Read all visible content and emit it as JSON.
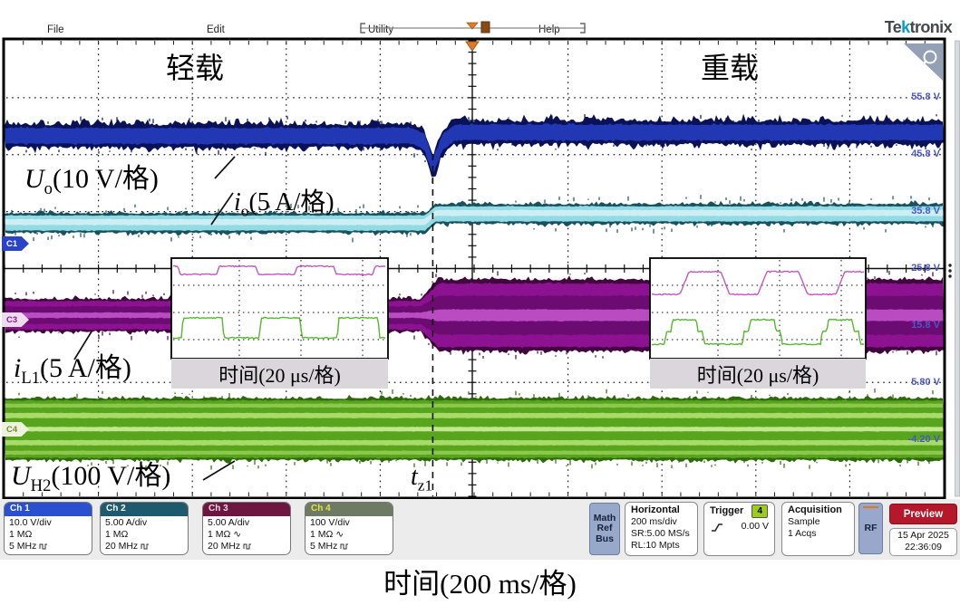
{
  "menu": {
    "items": [
      "File",
      "Edit",
      "Utility",
      "Help"
    ]
  },
  "logo": {
    "pre": "Te",
    "k": "k",
    "post": "tronix"
  },
  "display": {
    "region_light": "轻载",
    "region_heavy": "重载",
    "labels": {
      "uo": {
        "sym": "U",
        "sub": "o",
        "rest": "(10 V/格)"
      },
      "io": {
        "sym": "i",
        "sub": "o",
        "rest": "(5 A/格)"
      },
      "il1": {
        "sym": "i",
        "sub": "L1",
        "rest": "(5 A/格)"
      },
      "uh2": {
        "sym": "U",
        "sub": "H2",
        "rest": "(100 V/格)"
      },
      "tz1": {
        "sym": "t",
        "sub": "z1",
        "rest": ""
      }
    },
    "scale_labels": [
      "55.8 V",
      "45.8 V",
      "35.8 V",
      "25.8 V",
      "15.8 V",
      "5.80 V",
      "-4.20 V"
    ],
    "channel_markers": {
      "c1": "C1",
      "c3": "C3",
      "c4": "C4"
    },
    "inset_caption_left": "时间(20 μs/格)",
    "inset_caption_right": "时间(20 μs/格)"
  },
  "status_bar": {
    "channels": [
      {
        "name": "Ch 1",
        "line1": "10.0 V/div",
        "line2": "1 MΩ",
        "line3": "5 MHz",
        "header_color": "#2a4fd0",
        "text_color": "#ffffff"
      },
      {
        "name": "Ch 2",
        "line1": "5.00 A/div",
        "line2": "1 MΩ",
        "line3": "20 MHz",
        "header_color": "#1d5a6e",
        "text_color": "#ffffff"
      },
      {
        "name": "Ch 3",
        "line1": "5.00 A/div",
        "line2": "1 MΩ ∿",
        "line3": "20 MHz",
        "header_color": "#6e1642",
        "text_color": "#f0d8e0"
      },
      {
        "name": "Ch 4",
        "line1": "100 V/div",
        "line2": "1 MΩ ∿",
        "line3": "5 MHz",
        "header_color": "#6f7a64",
        "text_color": "#e6e23e"
      }
    ],
    "math": "Math",
    "ref": "Ref",
    "bus": "Bus",
    "horizontal": {
      "title": "Horizontal",
      "line1": "200 ms/div",
      "line2": "SR:5.00 MS/s",
      "line3": "RL:10 Mpts"
    },
    "trigger": {
      "title": "Trigger",
      "source_badge": "4",
      "level": "0.00 V"
    },
    "acquisition": {
      "title": "Acquisition",
      "line1": "Sample",
      "line2": "1 Acqs"
    },
    "rf": "RF",
    "preview": "Preview",
    "date": "15 Apr 2025",
    "time": "22:36:09"
  },
  "bottom_axis_label": "时间(200 ms/格)",
  "chart_data": {
    "type": "line",
    "x_axis": {
      "label": "时间(200 ms/格)",
      "seconds_per_div": 0.2,
      "divisions": 10
    },
    "event": {
      "name": "t_z1",
      "x_frac": 0.456,
      "description": "load step from 轻载 (light load) to 重载 (heavy load)"
    },
    "scale_labels_V": [
      55.8,
      45.8,
      35.8,
      25.8,
      15.8,
      5.8,
      -4.2
    ],
    "traces": [
      {
        "channel": "Ch1",
        "name": "U_o",
        "per_div": "10 V",
        "color": "#2237b4",
        "y_div_left": 1.67,
        "y_div_right": 1.61,
        "half_div": 0.18,
        "dip": {
          "x_frac": 0.456,
          "y_div": 2.21
        }
      },
      {
        "channel": "Ch2",
        "name": "i_o",
        "per_div": "5 A",
        "color": "#93dbe4",
        "y_div_left": 3.2,
        "y_div_right": 3.04,
        "half_div": 0.16
      },
      {
        "channel": "Ch3",
        "name": "i_L1",
        "per_div": "5 A",
        "color": "#8c1292",
        "y_div": 4.82,
        "half_div_left": 0.27,
        "half_div_right": 0.61
      },
      {
        "channel": "Ch4",
        "name": "U_H2",
        "per_div": "100 V",
        "color": "#58a41c",
        "y_div": 6.82,
        "half_div": 0.53
      }
    ],
    "insets": [
      {
        "caption": "时间(20 μs/格)",
        "time_per_div": "20 μs",
        "waves": [
          {
            "color": "#c058c0",
            "offset": 17,
            "pattern": [
              [
                33,
                18,
                18
              ],
              [
                3,
                18,
                9
              ],
              [
                40,
                9,
                9
              ],
              [
                3,
                9,
                18
              ],
              [
                7,
                18,
                18
              ]
            ]
          },
          {
            "color": "#55b82e",
            "offset": 11,
            "pattern": [
              [
                2,
                88,
                66
              ],
              [
                43,
                66,
                66
              ],
              [
                2,
                66,
                88
              ],
              [
                39,
                88,
                88
              ]
            ]
          }
        ]
      },
      {
        "caption": "时间(20 μs/格)",
        "time_per_div": "20 μs",
        "waves": [
          {
            "color": "#c058c0",
            "offset": 43,
            "pattern": [
              [
                35,
                15,
                15
              ],
              [
                10,
                15,
                40
              ],
              [
                31,
                40,
                40
              ],
              [
                10,
                40,
                15
              ]
            ]
          },
          {
            "color": "#55b82e",
            "offset": 18,
            "pattern": [
              [
                5,
                81,
                81
              ],
              [
                2,
                81,
                68
              ],
              [
                26,
                68,
                68
              ],
              [
                2,
                68,
                81
              ],
              [
                5,
                81,
                81
              ],
              [
                2,
                81,
                95
              ],
              [
                42,
                95,
                95
              ],
              [
                2,
                95,
                81
              ]
            ]
          }
        ]
      }
    ]
  }
}
